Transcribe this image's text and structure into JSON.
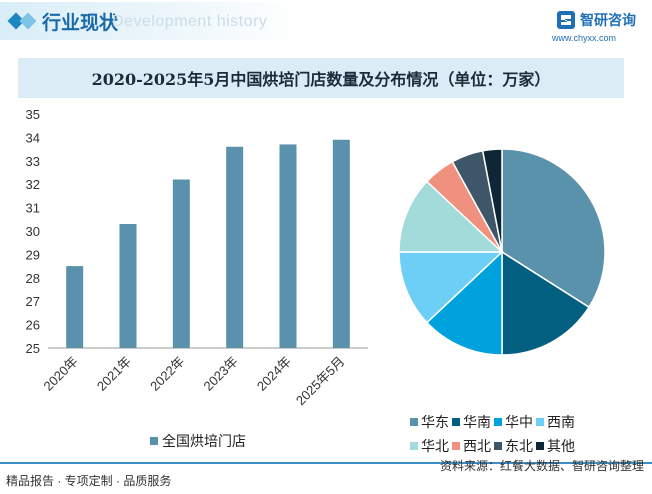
{
  "header": {
    "section_title": "行业现状",
    "ghost_text": "Development history",
    "brand_name": "智研咨询",
    "brand_url": "www.chyxx.com",
    "accent": "#1f86c4"
  },
  "footer": {
    "left_text": "精品报告 · 专项定制 · 品质服务",
    "source_text": "资料来源：红餐大数据、智研咨询整理"
  },
  "chart_data": [
    {
      "type": "bar",
      "title": "2020-2025年5月中国烘培门店数量及分布情况（单位：万家）",
      "categories": [
        "2020年",
        "2021年",
        "2022年",
        "2023年",
        "2024年",
        "2025年5月"
      ],
      "series": [
        {
          "name": "全国烘培门店",
          "values": [
            28.5,
            30.3,
            32.2,
            33.6,
            33.7,
            33.9
          ],
          "color": "#5b92ab"
        }
      ],
      "ylim": [
        25,
        35
      ],
      "yticks": [
        25,
        26,
        27,
        28,
        29,
        30,
        31,
        32,
        33,
        34,
        35
      ],
      "xlabel": "",
      "ylabel": "",
      "legend": "bottom"
    },
    {
      "type": "pie",
      "categories": [
        "华东",
        "华南",
        "华中",
        "西南",
        "华北",
        "西北",
        "东北",
        "其他"
      ],
      "values": [
        34,
        16,
        13,
        12,
        12,
        5,
        5,
        3
      ],
      "colors": [
        "#5b92ab",
        "#035f80",
        "#00a2dd",
        "#6ecff6",
        "#a2dbd9",
        "#f0907e",
        "#3d5668",
        "#0e2737"
      ],
      "legend": "bottom-right"
    }
  ]
}
